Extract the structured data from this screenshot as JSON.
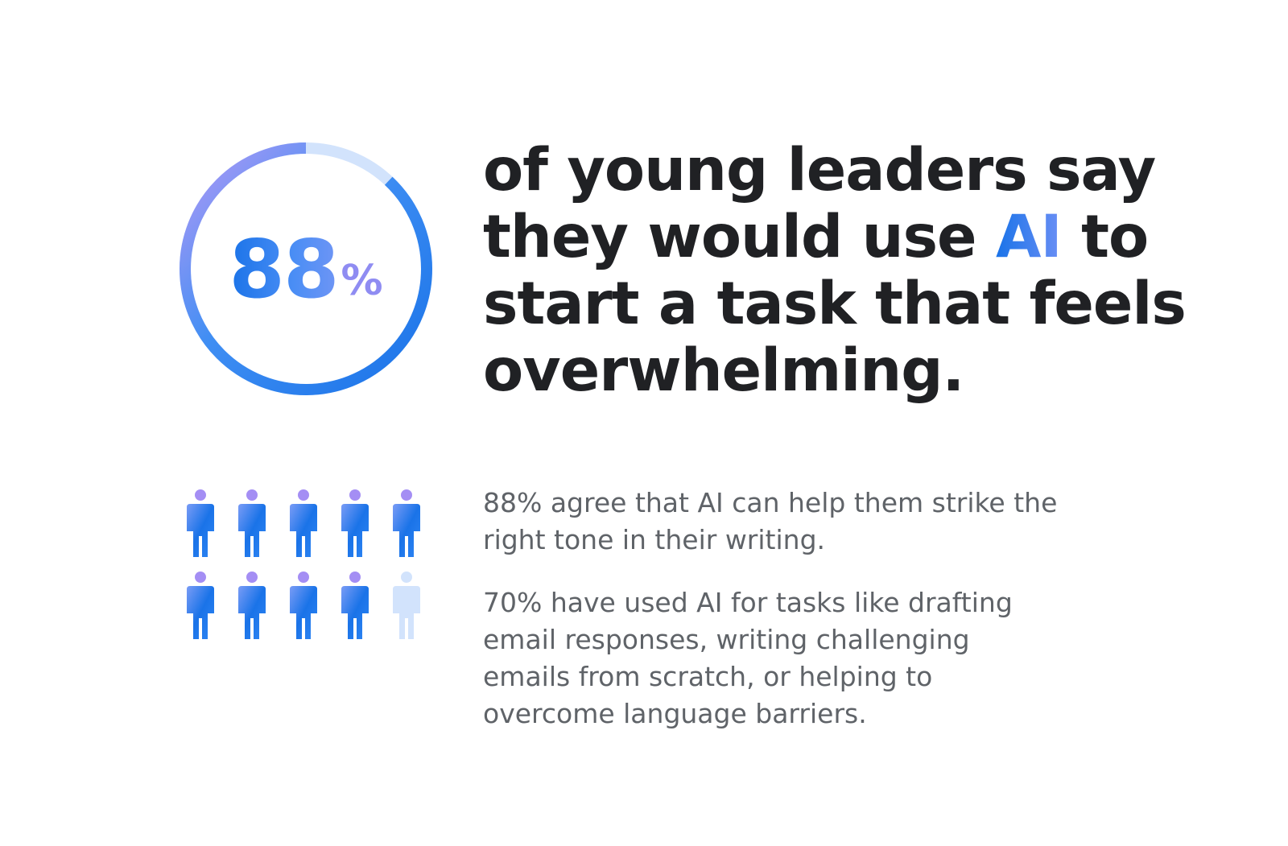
{
  "stat": {
    "number": "88",
    "percent_sign": "%",
    "fraction": 0.88
  },
  "headline": {
    "before_ai": "of young leaders say they would use ",
    "ai": "AI",
    "after_ai": " to start a task that feels overwhelming."
  },
  "people_chart": {
    "total": 10,
    "highlighted": 9,
    "highlight_color": "#1a73e8",
    "muted_color": "#d2e3fc"
  },
  "paragraphs": {
    "p1": "88% agree that AI can help them strike the right tone in their writing.",
    "p2": "70% have used AI for tasks like drafting email responses, writing challenging emails from scratch, or helping to overcome language barriers."
  },
  "colors": {
    "accent_blue": "#1a73e8",
    "accent_purple": "#a98ef5",
    "ring_track": "#d2e3fc",
    "heading": "#202124",
    "body": "#5f6368"
  }
}
